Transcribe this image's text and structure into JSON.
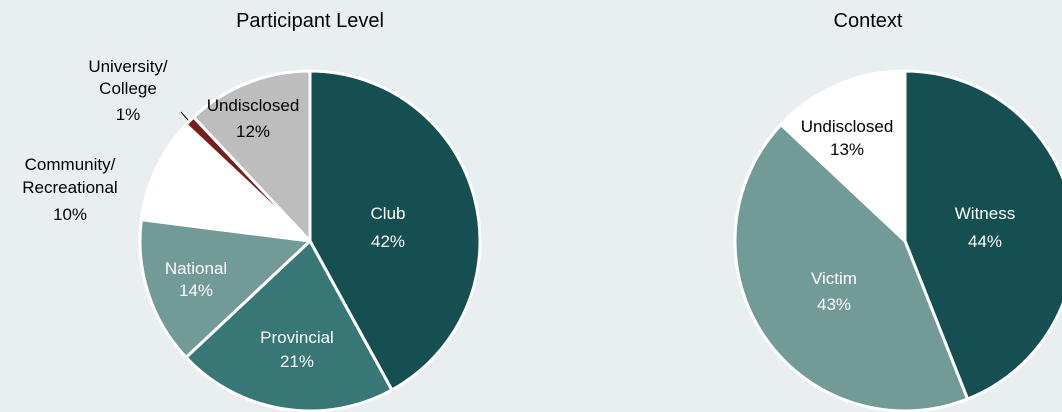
{
  "chart_data": [
    {
      "type": "pie",
      "title": "Participant Level",
      "slices": [
        {
          "label": "Club",
          "value": 42,
          "pct_label": "42%",
          "color": "#154f52",
          "text_color": "#ffffff"
        },
        {
          "label": "Provincial",
          "value": 21,
          "pct_label": "21%",
          "color": "#377775",
          "text_color": "#ffffff"
        },
        {
          "label": "National",
          "value": 14,
          "pct_label": "14%",
          "color": "#729b97",
          "text_color": "#ffffff"
        },
        {
          "label": "Community/\nRecreational",
          "value": 10,
          "pct_label": "10%",
          "color": "#ffffff",
          "text_color": "#000000"
        },
        {
          "label": "University/\nCollege",
          "value": 1,
          "pct_label": "1%",
          "color": "#7b1c1c",
          "text_color": "#000000"
        },
        {
          "label": "Undisclosed",
          "value": 12,
          "pct_label": "12%",
          "color": "#bdbdbd",
          "text_color": "#000000"
        }
      ]
    },
    {
      "type": "pie",
      "title": "Context",
      "slices": [
        {
          "label": "Witness",
          "value": 44,
          "pct_label": "44%",
          "color": "#154f52",
          "text_color": "#ffffff"
        },
        {
          "label": "Victim",
          "value": 43,
          "pct_label": "43%",
          "color": "#729b97",
          "text_color": "#ffffff"
        },
        {
          "label": "Undisclosed",
          "value": 13,
          "pct_label": "13%",
          "color": "#ffffff",
          "text_color": "#000000"
        }
      ]
    }
  ]
}
